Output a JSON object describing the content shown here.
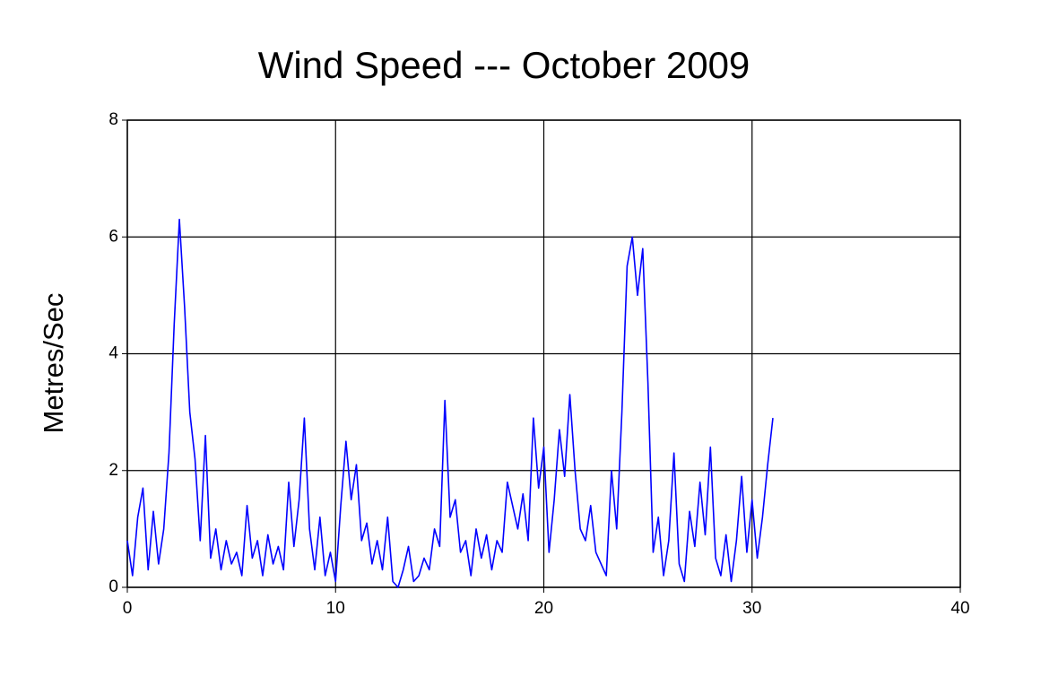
{
  "chart_data": {
    "type": "line",
    "title": "Wind Speed --- October 2009",
    "y_label": "Metres/Sec",
    "x": [
      0,
      0.25,
      0.5,
      0.75,
      1,
      1.25,
      1.5,
      1.75,
      2,
      2.25,
      2.5,
      2.75,
      3,
      3.25,
      3.5,
      3.75,
      4,
      4.25,
      4.5,
      4.75,
      5,
      5.25,
      5.5,
      5.75,
      6,
      6.25,
      6.5,
      6.75,
      7,
      7.25,
      7.5,
      7.75,
      8,
      8.25,
      8.5,
      8.75,
      9,
      9.25,
      9.5,
      9.75,
      10,
      10.25,
      10.5,
      10.75,
      11,
      11.25,
      11.5,
      11.75,
      12,
      12.25,
      12.5,
      12.75,
      13,
      13.25,
      13.5,
      13.75,
      14,
      14.25,
      14.5,
      14.75,
      15,
      15.25,
      15.5,
      15.75,
      16,
      16.25,
      16.5,
      16.75,
      17,
      17.25,
      17.5,
      17.75,
      18,
      18.25,
      18.5,
      18.75,
      19,
      19.25,
      19.5,
      19.75,
      20,
      20.25,
      20.5,
      20.75,
      21,
      21.25,
      21.5,
      21.75,
      22,
      22.25,
      22.5,
      22.75,
      23,
      23.25,
      23.5,
      23.75,
      24,
      24.25,
      24.5,
      24.75,
      25,
      25.25,
      25.5,
      25.75,
      26,
      26.25,
      26.5,
      26.75,
      27,
      27.25,
      27.5,
      27.75,
      28,
      28.25,
      28.5,
      28.75,
      29,
      29.25,
      29.5,
      29.75,
      30,
      30.25,
      30.5,
      30.75,
      31
    ],
    "values": [
      0.8,
      0.2,
      1.2,
      1.7,
      0.3,
      1.3,
      0.4,
      1.0,
      2.3,
      4.5,
      6.3,
      4.8,
      3.0,
      2.2,
      0.8,
      2.6,
      0.5,
      1.0,
      0.3,
      0.8,
      0.4,
      0.6,
      0.2,
      1.4,
      0.5,
      0.8,
      0.2,
      0.9,
      0.4,
      0.7,
      0.3,
      1.8,
      0.7,
      1.5,
      2.9,
      1.0,
      0.3,
      1.2,
      0.2,
      0.6,
      0.1,
      1.4,
      2.5,
      1.5,
      2.1,
      0.8,
      1.1,
      0.4,
      0.8,
      0.3,
      1.2,
      0.1,
      0.0,
      0.3,
      0.7,
      0.1,
      0.2,
      0.5,
      0.3,
      1.0,
      0.7,
      3.2,
      1.2,
      1.5,
      0.6,
      0.8,
      0.2,
      1.0,
      0.5,
      0.9,
      0.3,
      0.8,
      0.6,
      1.8,
      1.4,
      1.0,
      1.6,
      0.8,
      2.9,
      1.7,
      2.4,
      0.6,
      1.5,
      2.7,
      1.9,
      3.3,
      2.0,
      1.0,
      0.8,
      1.4,
      0.6,
      0.4,
      0.2,
      2.0,
      1.0,
      3.0,
      5.5,
      6.0,
      5.0,
      5.8,
      3.5,
      0.6,
      1.2,
      0.2,
      0.8,
      2.3,
      0.4,
      0.1,
      1.3,
      0.7,
      1.8,
      0.9,
      2.4,
      0.5,
      0.2,
      0.9,
      0.1,
      0.8,
      1.9,
      0.6,
      1.5,
      0.5,
      1.2,
      2.1,
      2.9
    ],
    "color": "#0000ff",
    "xlim": [
      0,
      40
    ],
    "xticks": [
      0,
      10,
      20,
      30,
      40
    ],
    "ylim": [
      0,
      8
    ],
    "yticks": [
      0,
      2,
      4,
      6,
      8
    ],
    "grid": true
  }
}
